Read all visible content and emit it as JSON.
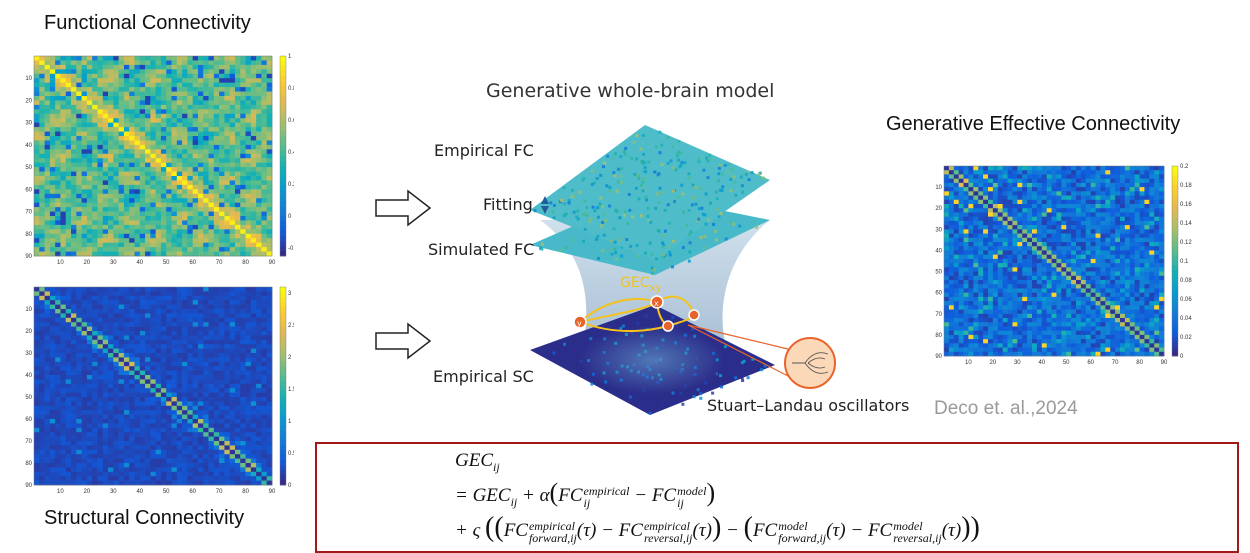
{
  "titles": {
    "fc": "Functional Connectivity",
    "sc": "Structural Connectivity",
    "gec": "Generative Effective Connectivity"
  },
  "model": {
    "title": "Generative whole-brain model",
    "empirical_fc": "Empirical FC",
    "fitting": "Fitting",
    "simulated_fc": "Simulated FC",
    "empirical_sc": "Empirical SC",
    "oscillators": "Stuart–Landau oscillators",
    "gec_label": "GEC",
    "gec_sub": "xy",
    "node_x": "x",
    "node_y": "y"
  },
  "citation": "Deco et. al.,2024",
  "matrix_axis_ticks": [
    "10",
    "20",
    "30",
    "40",
    "50",
    "60",
    "70",
    "80",
    "90"
  ],
  "fc_colorbar_ticks": [
    "1",
    "0.8",
    "0.6",
    "0.4",
    "0.2",
    "0",
    "-0.2"
  ],
  "sc_colorbar_ticks": [
    "3",
    "2.5",
    "2",
    "1.5",
    "1",
    "0.5",
    "0"
  ],
  "gec_colorbar_ticks": [
    "0.2",
    "0.18",
    "0.16",
    "0.14",
    "0.12",
    "0.1",
    "0.08",
    "0.06",
    "0.04",
    "0.02",
    "0"
  ],
  "formula": {
    "gec": "GEC",
    "ij": "ij",
    "eq_prefix": "= GEC",
    "plus_alpha": " + α",
    "fc": "FC",
    "empirical": "empirical",
    "model": "model",
    "minus": " − ",
    "plus_varsigma": "+ ς",
    "forward_ij": "forward,ij",
    "reversal_ij": "reversal,ij",
    "tau": "(τ)"
  },
  "colors": {
    "formula_border": "#a01818",
    "parula_low": "#352a87",
    "parula_high": "#f9fb0e"
  }
}
